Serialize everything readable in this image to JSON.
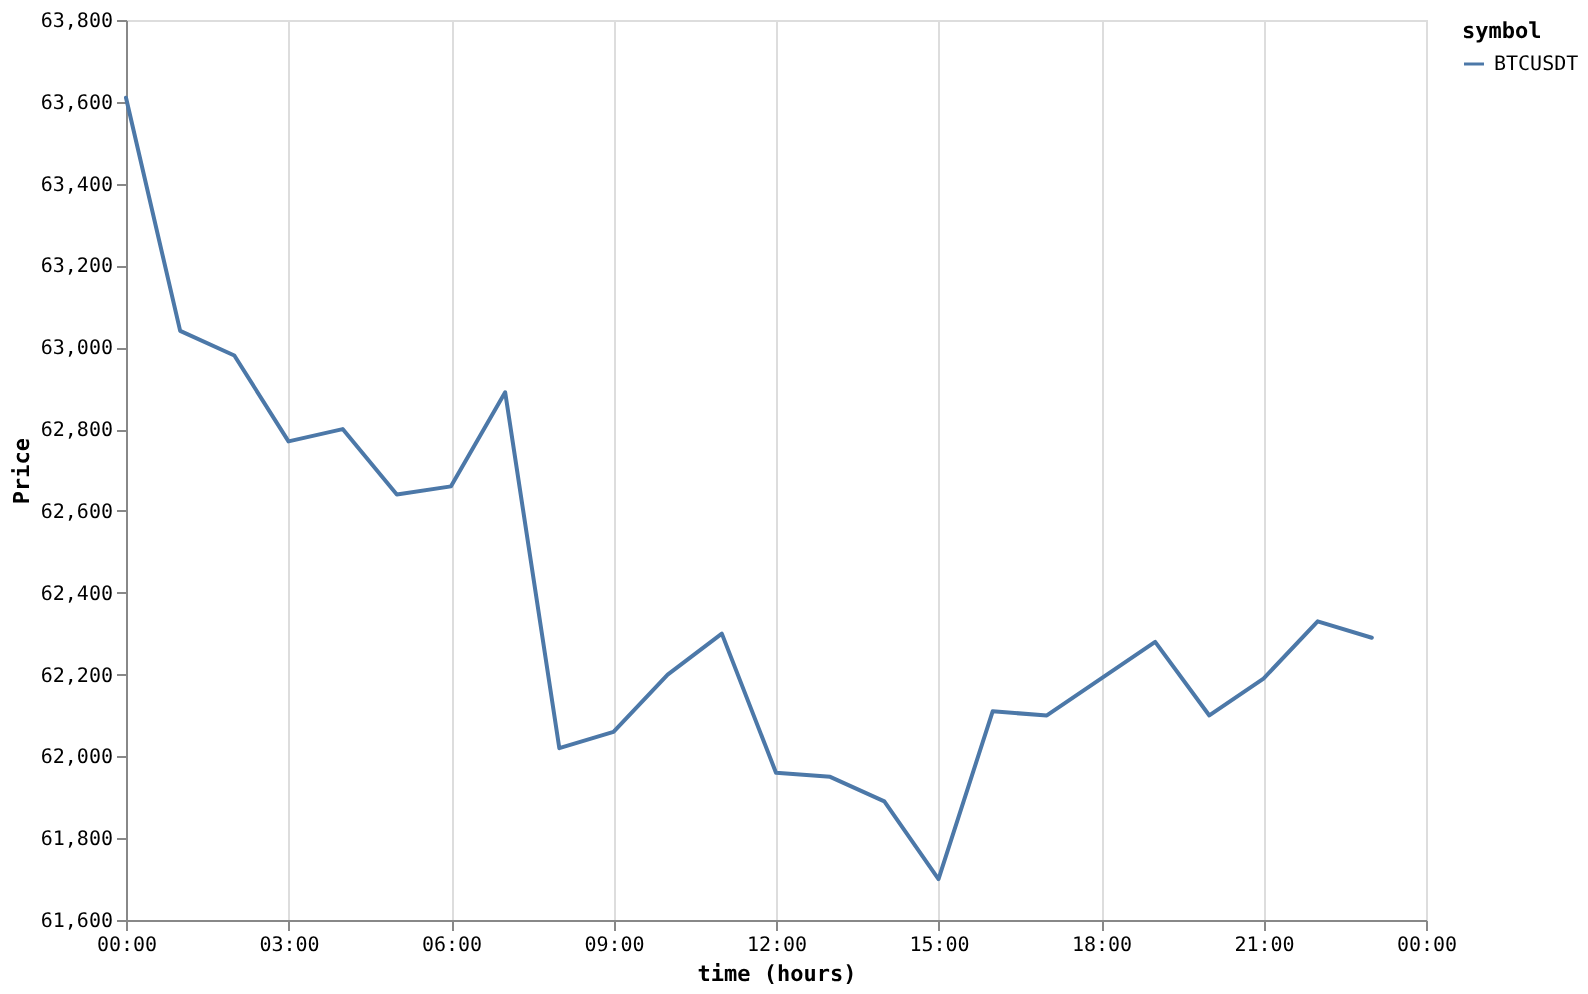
{
  "chart_data": {
    "type": "line",
    "xlabel": "time (hours)",
    "ylabel": "Price",
    "legend_title": "symbol",
    "x": [
      0,
      1,
      2,
      3,
      4,
      5,
      6,
      7,
      8,
      9,
      10,
      11,
      12,
      13,
      14,
      15,
      16,
      17,
      18,
      19,
      20,
      21,
      22,
      23
    ],
    "series": [
      {
        "name": "BTCUSDT",
        "color": "#4c78a8",
        "values": [
          63610,
          63040,
          62980,
          62770,
          62800,
          62640,
          62660,
          62890,
          62020,
          62060,
          62200,
          62300,
          61960,
          61950,
          61890,
          61700,
          62110,
          62100,
          62190,
          62280,
          62100,
          62190,
          62330,
          62290
        ]
      }
    ],
    "xlim": [
      0,
      24
    ],
    "xticks": [
      {
        "value": 0,
        "label": "00:00"
      },
      {
        "value": 3,
        "label": "03:00"
      },
      {
        "value": 6,
        "label": "06:00"
      },
      {
        "value": 9,
        "label": "09:00"
      },
      {
        "value": 12,
        "label": "12:00"
      },
      {
        "value": 15,
        "label": "15:00"
      },
      {
        "value": 18,
        "label": "18:00"
      },
      {
        "value": 21,
        "label": "21:00"
      },
      {
        "value": 24,
        "label": "00:00"
      }
    ],
    "ylim": [
      61600,
      63800
    ],
    "yticks": [
      {
        "value": 61600,
        "label": "61,600"
      },
      {
        "value": 61800,
        "label": "61,800"
      },
      {
        "value": 62000,
        "label": "62,000"
      },
      {
        "value": 62200,
        "label": "62,200"
      },
      {
        "value": 62400,
        "label": "62,400"
      },
      {
        "value": 62600,
        "label": "62,600"
      },
      {
        "value": 62800,
        "label": "62,800"
      },
      {
        "value": 63000,
        "label": "63,000"
      },
      {
        "value": 63200,
        "label": "63,200"
      },
      {
        "value": 63400,
        "label": "63,400"
      },
      {
        "value": 63600,
        "label": "63,600"
      },
      {
        "value": 63800,
        "label": "63,800"
      }
    ],
    "grid": "x",
    "legend": "top right",
    "line_style": "solid"
  }
}
